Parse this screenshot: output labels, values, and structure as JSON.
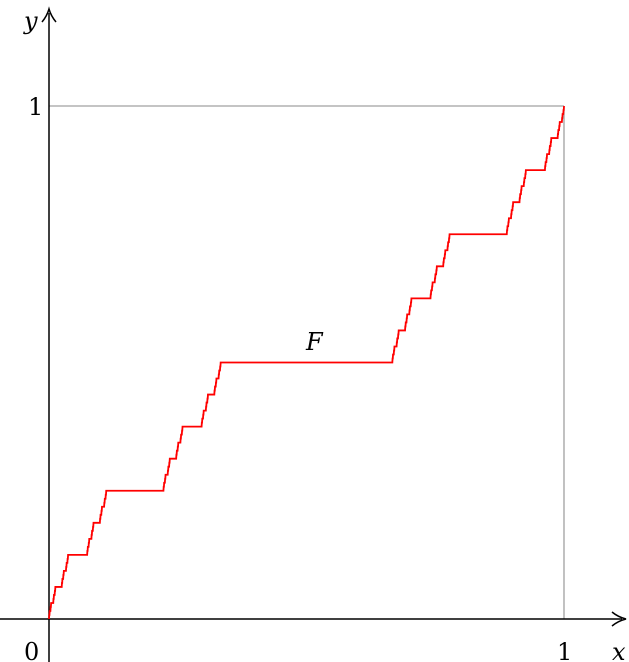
{
  "chart_data": {
    "type": "line",
    "title": "",
    "xlabel": "x",
    "ylabel": "y",
    "origin_label": "0",
    "x_ticks": [
      {
        "value": 1,
        "label": "1"
      }
    ],
    "y_ticks": [
      {
        "value": 1,
        "label": "1"
      }
    ],
    "xlim": [
      0,
      1
    ],
    "ylim": [
      0,
      1
    ],
    "grid": false,
    "series": [
      {
        "name": "F",
        "color": "#ff0000",
        "function": "cantor",
        "cantor_depth": 7
      }
    ],
    "colors": {
      "curve": "#ff0000",
      "guide": "#a0a0a0",
      "axis": "#000000"
    }
  }
}
